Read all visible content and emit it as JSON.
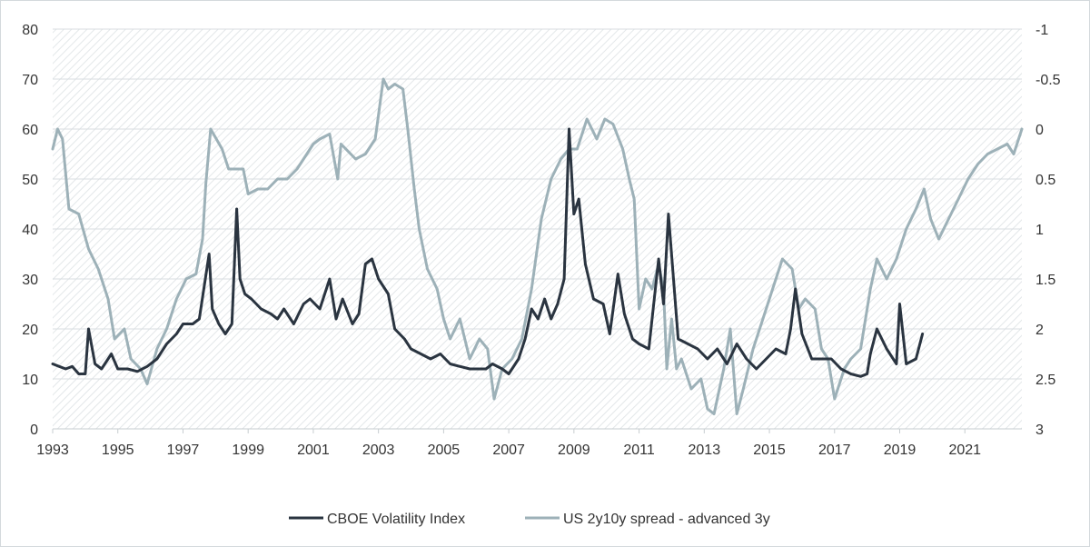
{
  "chart_data": {
    "type": "line",
    "title": "",
    "xlabel": "",
    "ylabel": "",
    "y2label": "",
    "xlim": [
      1993.0,
      2022.75
    ],
    "ylim": [
      0,
      80
    ],
    "y2lim": [
      3,
      -1
    ],
    "y2_inverted": true,
    "grid": "horizontal",
    "legend_position": "bottom",
    "x_ticks": [
      "1993",
      "1995",
      "1997",
      "1999",
      "2001",
      "2003",
      "2005",
      "2007",
      "2009",
      "2011",
      "2013",
      "2015",
      "2017",
      "2019",
      "2021"
    ],
    "y_ticks": [
      "0",
      "10",
      "20",
      "30",
      "40",
      "50",
      "60",
      "70",
      "80"
    ],
    "y2_ticks": [
      "3",
      "2.5",
      "2",
      "1.5",
      "1",
      "0.5",
      "0",
      "-0.5",
      "-1"
    ],
    "colors": {
      "vix": "#2a3440",
      "spread": "#9db1b8",
      "plot_bg_hatch": "#e3e7e9",
      "grid": "#d8dee1"
    },
    "series": [
      {
        "name": "CBOE Volatility Index",
        "axis": "left",
        "x": [
          1993.0,
          1993.2,
          1993.4,
          1993.6,
          1993.8,
          1994.0,
          1994.1,
          1994.3,
          1994.5,
          1994.8,
          1995.0,
          1995.3,
          1995.6,
          1995.9,
          1996.2,
          1996.5,
          1996.8,
          1997.0,
          1997.3,
          1997.5,
          1997.8,
          1997.9,
          1998.1,
          1998.3,
          1998.5,
          1998.65,
          1998.75,
          1998.9,
          1999.1,
          1999.4,
          1999.7,
          1999.9,
          2000.1,
          2000.4,
          2000.7,
          2000.9,
          2001.2,
          2001.5,
          2001.7,
          2001.9,
          2002.2,
          2002.4,
          2002.6,
          2002.8,
          2003.0,
          2003.3,
          2003.5,
          2003.8,
          2004.0,
          2004.3,
          2004.6,
          2004.9,
          2005.2,
          2005.5,
          2005.8,
          2006.0,
          2006.3,
          2006.5,
          2006.8,
          2007.0,
          2007.3,
          2007.5,
          2007.7,
          2007.9,
          2008.1,
          2008.3,
          2008.5,
          2008.7,
          2008.85,
          2009.0,
          2009.15,
          2009.35,
          2009.6,
          2009.9,
          2010.1,
          2010.35,
          2010.55,
          2010.8,
          2011.0,
          2011.3,
          2011.6,
          2011.75,
          2011.9,
          2012.2,
          2012.5,
          2012.8,
          2013.1,
          2013.4,
          2013.7,
          2014.0,
          2014.3,
          2014.6,
          2014.9,
          2015.2,
          2015.5,
          2015.65,
          2015.8,
          2016.0,
          2016.3,
          2016.6,
          2016.9,
          2017.2,
          2017.5,
          2017.8,
          2018.0,
          2018.1,
          2018.3,
          2018.6,
          2018.9,
          2019.0,
          2019.2,
          2019.5,
          2019.7
        ],
        "values": [
          13,
          12.5,
          12,
          12.5,
          11,
          11,
          20,
          13,
          12,
          15,
          12,
          12,
          11.5,
          12.5,
          14,
          17,
          19,
          21,
          21,
          22,
          35,
          24,
          21,
          19,
          21,
          44,
          30,
          27,
          26,
          24,
          23,
          22,
          24,
          21,
          25,
          26,
          24,
          30,
          22,
          26,
          21,
          23,
          33,
          34,
          30,
          27,
          20,
          18,
          16,
          15,
          14,
          15,
          13,
          12.5,
          12,
          12,
          12,
          13,
          12,
          11,
          14,
          18,
          24,
          22,
          26,
          22,
          25,
          30,
          60,
          43,
          46,
          33,
          26,
          25,
          19,
          31,
          23,
          18,
          17,
          16,
          34,
          25,
          43,
          18,
          17,
          16,
          14,
          16,
          13,
          17,
          14,
          12,
          14,
          16,
          15,
          20,
          28,
          19,
          14,
          14,
          14,
          12,
          11,
          10.5,
          11,
          15,
          20,
          16,
          13,
          25,
          13,
          14,
          19
        ]
      },
      {
        "name": "US 2y10y spread - advanced 3y",
        "axis": "right",
        "x": [
          1993.0,
          1993.15,
          1993.3,
          1993.5,
          1993.8,
          1994.1,
          1994.4,
          1994.7,
          1994.9,
          1995.2,
          1995.4,
          1995.7,
          1995.9,
          1996.2,
          1996.5,
          1996.8,
          1997.1,
          1997.4,
          1997.6,
          1997.7,
          1997.85,
          1998.2,
          1998.4,
          1998.6,
          1998.85,
          1999.0,
          1999.3,
          1999.6,
          1999.9,
          2000.2,
          2000.5,
          2000.8,
          2001.0,
          2001.2,
          2001.5,
          2001.75,
          2001.85,
          2002.0,
          2002.3,
          2002.6,
          2002.9,
          2003.15,
          2003.3,
          2003.5,
          2003.75,
          2003.9,
          2004.1,
          2004.25,
          2004.5,
          2004.8,
          2005.0,
          2005.2,
          2005.5,
          2005.8,
          2006.1,
          2006.35,
          2006.55,
          2006.8,
          2007.1,
          2007.4,
          2007.7,
          2008.0,
          2008.3,
          2008.6,
          2008.85,
          2009.1,
          2009.4,
          2009.7,
          2009.95,
          2010.2,
          2010.5,
          2010.7,
          2010.85,
          2011.0,
          2011.2,
          2011.4,
          2011.6,
          2011.75,
          2011.85,
          2012.0,
          2012.15,
          2012.3,
          2012.6,
          2012.9,
          2013.1,
          2013.3,
          2013.6,
          2013.8,
          2014.0,
          2014.2,
          2014.5,
          2014.8,
          2015.1,
          2015.4,
          2015.7,
          2015.9,
          2016.1,
          2016.4,
          2016.6,
          2016.8,
          2017.0,
          2017.3,
          2017.5,
          2017.8,
          2018.1,
          2018.3,
          2018.6,
          2018.9,
          2019.2,
          2019.5,
          2019.75,
          2019.95,
          2020.2,
          2020.5,
          2020.8,
          2021.1,
          2021.4,
          2021.7,
          2022.0,
          2022.3,
          2022.5,
          2022.75
        ],
        "values": [
          0.2,
          0,
          0.1,
          0.8,
          0.85,
          1.2,
          1.4,
          1.7,
          2.1,
          2.0,
          2.3,
          2.4,
          2.55,
          2.2,
          2.0,
          1.7,
          1.5,
          1.45,
          1.1,
          0.55,
          0.0,
          0.2,
          0.4,
          0.4,
          0.4,
          0.65,
          0.6,
          0.6,
          0.5,
          0.5,
          0.4,
          0.25,
          0.15,
          0.1,
          0.05,
          0.5,
          0.15,
          0.2,
          0.3,
          0.25,
          0.1,
          -0.5,
          -0.4,
          -0.45,
          -0.4,
          0.0,
          0.6,
          1.0,
          1.4,
          1.6,
          1.9,
          2.1,
          1.9,
          2.3,
          2.1,
          2.2,
          2.7,
          2.4,
          2.3,
          2.1,
          1.6,
          0.9,
          0.5,
          0.3,
          0.2,
          0.2,
          -0.1,
          0.1,
          -0.1,
          -0.05,
          0.2,
          0.5,
          0.7,
          1.8,
          1.5,
          1.6,
          1.35,
          1.6,
          2.4,
          1.9,
          2.4,
          2.3,
          2.6,
          2.5,
          2.8,
          2.85,
          2.4,
          2.0,
          2.85,
          2.6,
          2.2,
          1.9,
          1.6,
          1.3,
          1.4,
          1.8,
          1.7,
          1.8,
          2.2,
          2.3,
          2.7,
          2.4,
          2.3,
          2.2,
          1.6,
          1.3,
          1.5,
          1.3,
          1.0,
          0.8,
          0.6,
          0.9,
          1.1,
          0.9,
          0.7,
          0.5,
          0.35,
          0.25,
          0.2,
          0.15,
          0.25,
          0.0
        ]
      }
    ]
  }
}
